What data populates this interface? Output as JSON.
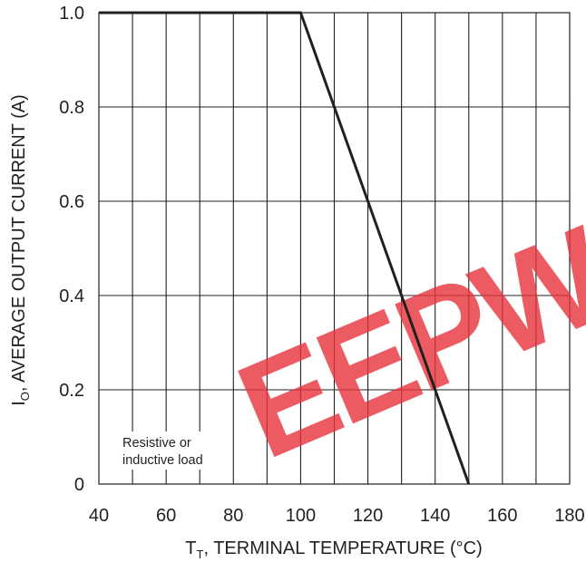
{
  "chart_data": {
    "type": "line",
    "x": [
      40,
      100,
      150
    ],
    "series": [
      {
        "values": [
          1.0,
          1.0,
          0.0
        ]
      }
    ],
    "xlabel": {
      "main": "T",
      "sub": "T",
      "rest": ", TERMINAL TEMPERATURE (°C)"
    },
    "ylabel": {
      "main": "I",
      "sub": "O",
      "rest": ", AVERAGE OUTPUT CURRENT (A)"
    },
    "xlim": [
      40,
      180
    ],
    "ylim": [
      0,
      1.0
    ],
    "x_ticks": [
      40,
      60,
      80,
      100,
      120,
      140,
      160,
      180
    ],
    "x_tick_labels": [
      "40",
      "60",
      "80",
      "100",
      "120",
      "140",
      "160",
      "180"
    ],
    "y_ticks": [
      0,
      0.2,
      0.4,
      0.6,
      0.8,
      1.0
    ],
    "y_tick_labels": [
      "0",
      "0.2",
      "0.4",
      "0.6",
      "0.8",
      "1.0"
    ],
    "x_minor_step": 10,
    "grid": true,
    "annotation": [
      "Resistive or",
      "inductive load"
    ],
    "colors": {
      "line": "#231f20",
      "grid": "#231f20",
      "watermark": "#e8323c"
    }
  },
  "watermark": {
    "text": "EEPW"
  }
}
